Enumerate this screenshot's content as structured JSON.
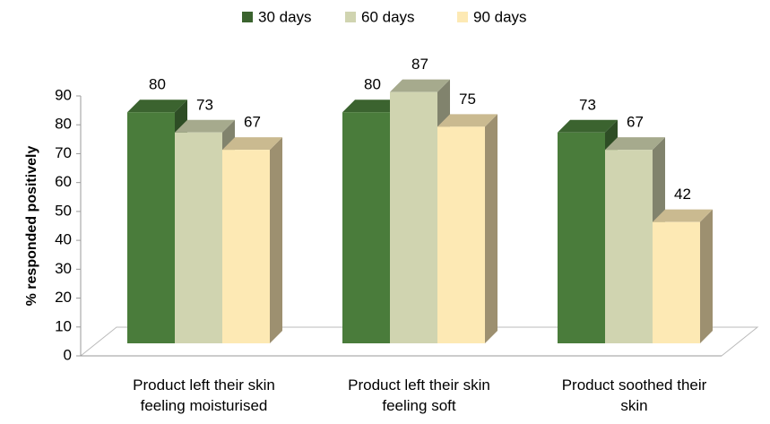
{
  "chart_data": {
    "type": "bar3d",
    "y_label": "% responded positively",
    "categories": [
      "Product left their skin\nfeeling moisturised",
      "Product left their skin\nfeeling soft",
      "Product soothed their\nskin"
    ],
    "series": [
      {
        "name": "30 days",
        "color": "#4a7c3b",
        "values": [
          80,
          80,
          73
        ]
      },
      {
        "name": "60 days",
        "color": "#d0d4b0",
        "values": [
          73,
          87,
          67
        ]
      },
      {
        "name": "90 days",
        "color": "#fde9b4",
        "values": [
          67,
          75,
          42
        ]
      }
    ],
    "ylim": [
      0,
      90
    ],
    "yticks": [
      0,
      10,
      20,
      30,
      40,
      50,
      60,
      70,
      80,
      90
    ],
    "legend": "top"
  }
}
